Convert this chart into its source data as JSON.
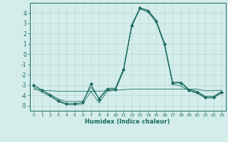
{
  "xlabel": "Humidex (Indice chaleur)",
  "x": [
    0,
    1,
    2,
    3,
    4,
    5,
    6,
    7,
    8,
    9,
    10,
    11,
    12,
    13,
    14,
    15,
    16,
    17,
    18,
    19,
    20,
    21,
    22,
    23
  ],
  "y_main": [
    -3.0,
    -3.5,
    -4.0,
    -4.5,
    -4.8,
    -4.8,
    -4.7,
    -2.9,
    -4.4,
    -3.4,
    -3.4,
    -1.5,
    2.8,
    4.5,
    4.2,
    3.2,
    1.0,
    -2.8,
    -2.8,
    -3.5,
    -3.7,
    -4.2,
    -4.2,
    -3.7
  ],
  "y_lower": [
    -3.2,
    -3.7,
    -4.1,
    -4.6,
    -4.9,
    -4.9,
    -4.85,
    -3.6,
    -4.75,
    -3.6,
    -3.5,
    -1.6,
    2.7,
    4.4,
    4.1,
    3.1,
    0.9,
    -2.9,
    -3.1,
    -3.55,
    -3.8,
    -4.25,
    -4.25,
    -3.75
  ],
  "y_upper": [
    -3.0,
    -3.5,
    -3.9,
    -4.35,
    -4.6,
    -4.6,
    -4.55,
    -3.2,
    -4.3,
    -3.3,
    -3.3,
    -1.4,
    2.9,
    4.5,
    4.3,
    3.3,
    1.1,
    -2.7,
    -2.7,
    -3.4,
    -3.6,
    -4.1,
    -4.1,
    -3.6
  ],
  "y_flat": [
    -3.4,
    -3.5,
    -3.55,
    -3.6,
    -3.6,
    -3.6,
    -3.6,
    -3.6,
    -3.6,
    -3.55,
    -3.5,
    -3.45,
    -3.4,
    -3.4,
    -3.4,
    -3.4,
    -3.4,
    -3.4,
    -3.4,
    -3.4,
    -3.4,
    -3.55,
    -3.55,
    -3.5
  ],
  "line_color": "#1a6b5e",
  "bg_color": "#d4edeb",
  "grid_color": "#b8d8d5",
  "ylim": [
    -5.5,
    5.0
  ],
  "yticks": [
    -5,
    -4,
    -3,
    -2,
    -1,
    0,
    1,
    2,
    3,
    4
  ],
  "xticks": [
    0,
    1,
    2,
    3,
    4,
    5,
    6,
    7,
    8,
    9,
    10,
    11,
    12,
    13,
    14,
    15,
    16,
    17,
    18,
    19,
    20,
    21,
    22,
    23
  ]
}
